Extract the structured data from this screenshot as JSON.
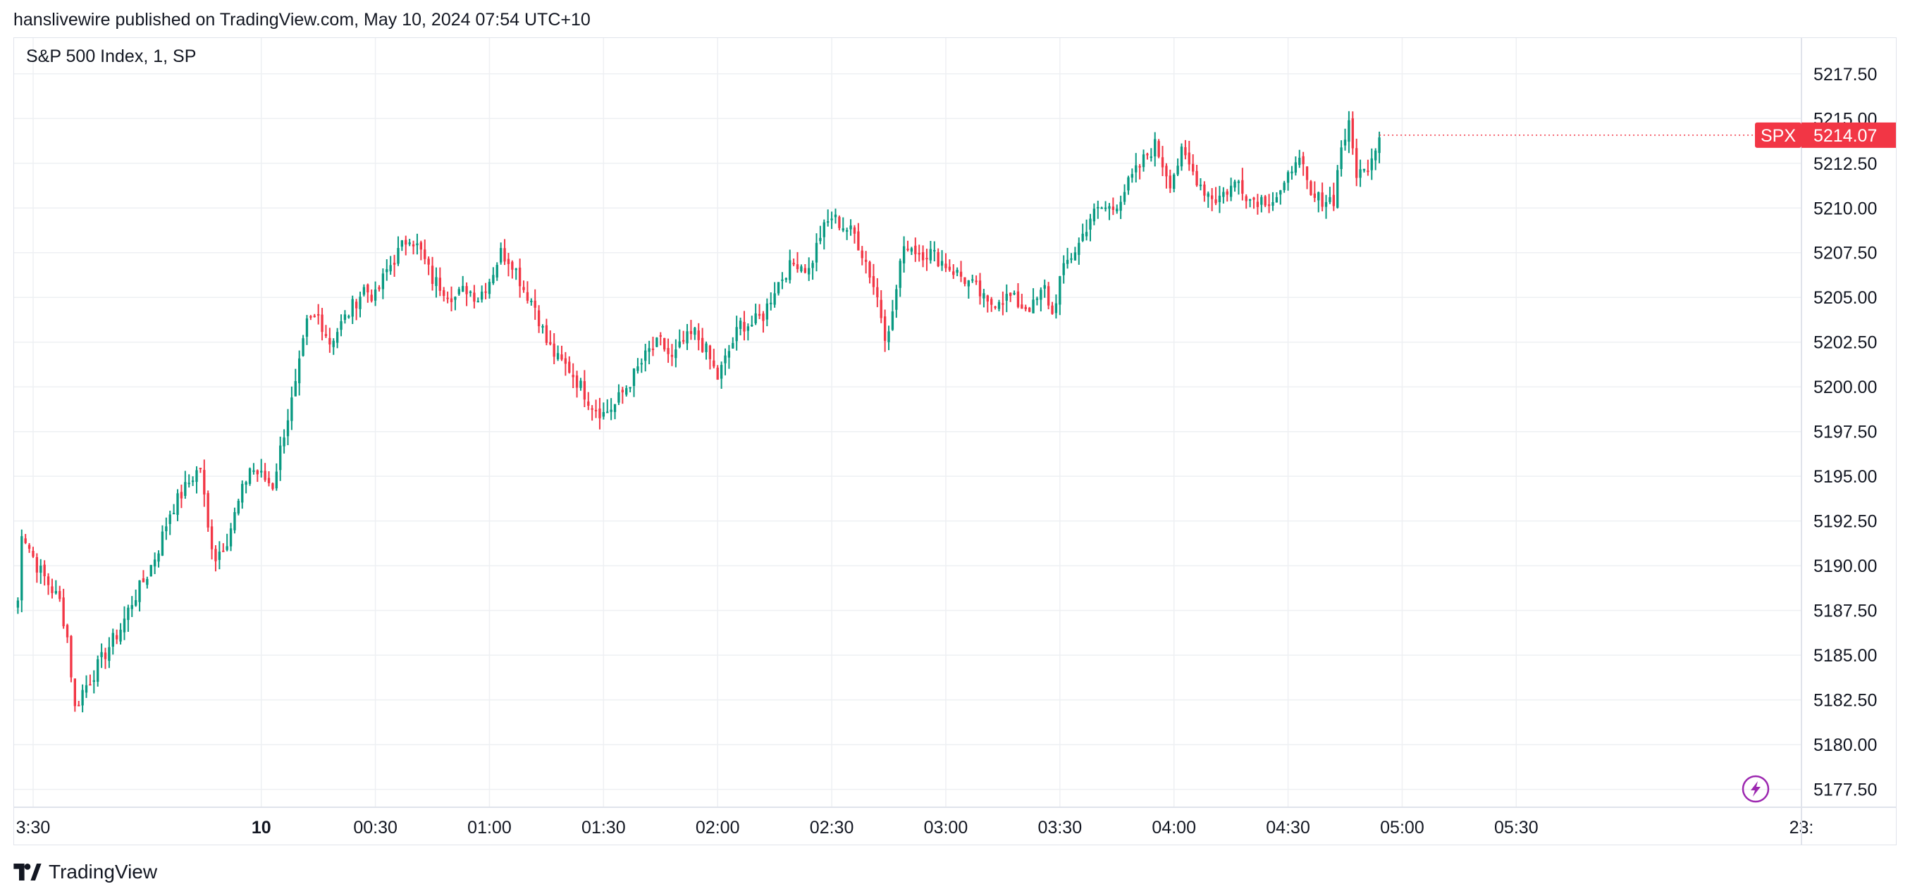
{
  "header": {
    "published": "hanslivewire published on TradingView.com, May 10, 2024 07:54 UTC+10"
  },
  "footer": {
    "brand": "TradingView"
  },
  "chart_data": {
    "type": "candlestick",
    "title": "S&P 500 Index, 1, SP",
    "symbol": "SPX",
    "last_price": "5214.07",
    "ylim": [
      5176.5,
      5219.5
    ],
    "y_ticks": [
      "5217.50",
      "5215.00",
      "5212.50",
      "5210.00",
      "5207.50",
      "5205.00",
      "5202.50",
      "5200.00",
      "5197.50",
      "5195.00",
      "5192.50",
      "5190.00",
      "5187.50",
      "5185.00",
      "5182.50",
      "5180.00",
      "5177.50"
    ],
    "x_ticks": [
      "3:30",
      "10",
      "00:30",
      "01:00",
      "01:30",
      "02:00",
      "02:30",
      "03:00",
      "03:30",
      "04:00",
      "04:30",
      "05:00",
      "05:30",
      "23:"
    ],
    "x_tick_times_min": [
      -60,
      0,
      30,
      60,
      90,
      120,
      150,
      180,
      210,
      240,
      270,
      300,
      330,
      405
    ],
    "x_range_min": [
      -65,
      405
    ],
    "close_path": [
      [
        -65,
        5187.8
      ],
      [
        -64,
        5188
      ],
      [
        -63,
        5192
      ],
      [
        -61,
        5191
      ],
      [
        -59,
        5190
      ],
      [
        -56,
        5189
      ],
      [
        -53,
        5188
      ],
      [
        -51,
        5186
      ],
      [
        -49,
        5182
      ],
      [
        -47,
        5183
      ],
      [
        -44,
        5184
      ],
      [
        -40,
        5185.5
      ],
      [
        -37,
        5186.5
      ],
      [
        -34,
        5188
      ],
      [
        -30,
        5189.5
      ],
      [
        -27,
        5191
      ],
      [
        -24,
        5193
      ],
      [
        -21,
        5194
      ],
      [
        -18,
        5195
      ],
      [
        -16,
        5195.5
      ],
      [
        -14,
        5192
      ],
      [
        -12,
        5190.5
      ],
      [
        -9,
        5191.5
      ],
      [
        -6,
        5193.5
      ],
      [
        -3,
        5195.5
      ],
      [
        0,
        5195
      ],
      [
        3,
        5194.5
      ],
      [
        6,
        5197.5
      ],
      [
        9,
        5200
      ],
      [
        12,
        5203.5
      ],
      [
        15,
        5204
      ],
      [
        18,
        5202.5
      ],
      [
        21,
        5203.5
      ],
      [
        24,
        5204.5
      ],
      [
        27,
        5205.5
      ],
      [
        30,
        5205
      ],
      [
        33,
        5206.5
      ],
      [
        36,
        5207.5
      ],
      [
        39,
        5208.5
      ],
      [
        42,
        5207.5
      ],
      [
        45,
        5206
      ],
      [
        48,
        5205.5
      ],
      [
        51,
        5205
      ],
      [
        54,
        5205.5
      ],
      [
        57,
        5205
      ],
      [
        60,
        5206
      ],
      [
        63,
        5207.5
      ],
      [
        66,
        5207
      ],
      [
        69,
        5205.5
      ],
      [
        72,
        5204.5
      ],
      [
        75,
        5202.5
      ],
      [
        78,
        5201.5
      ],
      [
        81,
        5201
      ],
      [
        84,
        5200
      ],
      [
        87,
        5199
      ],
      [
        90,
        5198.5
      ],
      [
        93,
        5199
      ],
      [
        96,
        5200
      ],
      [
        99,
        5201
      ],
      [
        102,
        5202
      ],
      [
        105,
        5202.5
      ],
      [
        108,
        5201.5
      ],
      [
        111,
        5202.5
      ],
      [
        114,
        5203
      ],
      [
        117,
        5202
      ],
      [
        120,
        5200.5
      ],
      [
        123,
        5202
      ],
      [
        126,
        5203.5
      ],
      [
        129,
        5203.5
      ],
      [
        132,
        5204
      ],
      [
        135,
        5205.5
      ],
      [
        138,
        5206.5
      ],
      [
        141,
        5207
      ],
      [
        144,
        5206.5
      ],
      [
        147,
        5208.5
      ],
      [
        150,
        5209.5
      ],
      [
        153,
        5209
      ],
      [
        156,
        5208.5
      ],
      [
        159,
        5207
      ],
      [
        162,
        5205
      ],
      [
        164,
        5203
      ],
      [
        166,
        5204
      ],
      [
        168,
        5207
      ],
      [
        170,
        5208
      ],
      [
        173,
        5207.5
      ],
      [
        176,
        5207.5
      ],
      [
        179,
        5207
      ],
      [
        182,
        5206.5
      ],
      [
        185,
        5206
      ],
      [
        188,
        5205.5
      ],
      [
        191,
        5204.5
      ],
      [
        194,
        5205
      ],
      [
        197,
        5205
      ],
      [
        200,
        5204.5
      ],
      [
        203,
        5204.5
      ],
      [
        206,
        5205.5
      ],
      [
        208,
        5204
      ],
      [
        210,
        5206
      ],
      [
        212,
        5207
      ],
      [
        215,
        5208
      ],
      [
        218,
        5209.5
      ],
      [
        221,
        5210
      ],
      [
        224,
        5210
      ],
      [
        227,
        5211
      ],
      [
        230,
        5212
      ],
      [
        233,
        5213
      ],
      [
        235,
        5213.5
      ],
      [
        237,
        5212.5
      ],
      [
        239,
        5211.5
      ],
      [
        242,
        5213
      ],
      [
        245,
        5212
      ],
      [
        248,
        5211
      ],
      [
        251,
        5210.5
      ],
      [
        254,
        5211
      ],
      [
        257,
        5211.5
      ],
      [
        260,
        5210.5
      ],
      [
        263,
        5210.5
      ],
      [
        266,
        5210.5
      ],
      [
        269,
        5211
      ],
      [
        272,
        5213
      ],
      [
        274,
        5212
      ],
      [
        276,
        5210.5
      ],
      [
        279,
        5210.5
      ],
      [
        282,
        5210.5
      ],
      [
        284,
        5213.5
      ],
      [
        286,
        5214.5
      ],
      [
        288,
        5212
      ],
      [
        290,
        5212
      ],
      [
        292,
        5213
      ],
      [
        294,
        5214.1
      ]
    ]
  }
}
